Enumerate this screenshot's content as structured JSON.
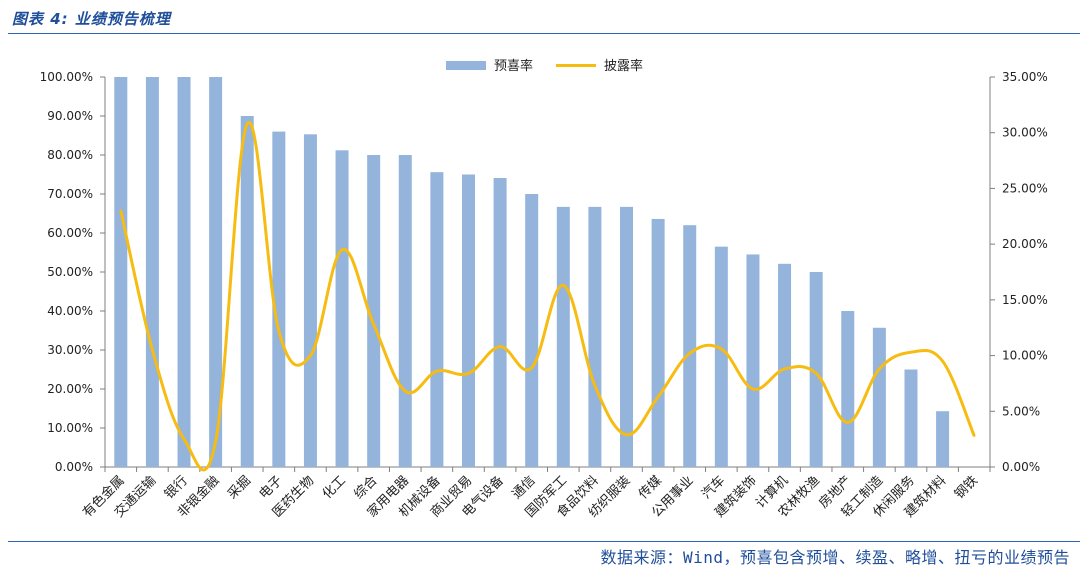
{
  "figure": {
    "title": "图表 4: 业绩预告梳理",
    "source": "数据来源：Wind，预喜包含预增、续盈、略增、扭亏的业绩预告"
  },
  "colors": {
    "bar": "#94b4dc",
    "line": "#f7bc12",
    "axis": "#7f7f7f",
    "rule": "#2b63b5"
  },
  "chart_data": {
    "type": "bar",
    "categories": [
      "有色金属",
      "交通运输",
      "银行",
      "非银金融",
      "采掘",
      "电子",
      "医药生物",
      "化工",
      "综合",
      "家用电器",
      "机械设备",
      "商业贸易",
      "电气设备",
      "通信",
      "国防军工",
      "食品饮料",
      "纺织服装",
      "传媒",
      "公用事业",
      "汽车",
      "建筑装饰",
      "计算机",
      "农林牧渔",
      "房地产",
      "轻工制造",
      "休闲服务",
      "建筑材料",
      "钢铁"
    ],
    "series": [
      {
        "name": "预喜率",
        "type": "bar",
        "axis": "left",
        "values": [
          100.0,
          100.0,
          100.0,
          100.0,
          90.0,
          86.0,
          85.3,
          81.2,
          80.0,
          80.0,
          75.6,
          75.0,
          74.1,
          70.0,
          66.7,
          66.7,
          66.7,
          63.6,
          62.0,
          56.5,
          54.5,
          52.1,
          50.0,
          40.0,
          35.7,
          25.0,
          14.3,
          null
        ]
      },
      {
        "name": "披露率",
        "type": "line",
        "axis": "right",
        "values": [
          23.0,
          10.5,
          2.5,
          2.3,
          30.8,
          12.2,
          10.0,
          19.5,
          12.8,
          6.8,
          8.6,
          8.4,
          10.8,
          8.9,
          16.3,
          7.3,
          2.9,
          6.3,
          10.2,
          10.6,
          7.0,
          8.8,
          8.4,
          4.0,
          8.8,
          10.3,
          9.5,
          2.8
        ]
      }
    ],
    "ylim_left": [
      0,
      100
    ],
    "ylim_right": [
      0,
      35
    ],
    "yticks_left": [
      "0.00%",
      "10.00%",
      "20.00%",
      "30.00%",
      "40.00%",
      "50.00%",
      "60.00%",
      "70.00%",
      "80.00%",
      "90.00%",
      "100.00%"
    ],
    "yticks_right": [
      "0.00%",
      "5.00%",
      "10.00%",
      "15.00%",
      "20.00%",
      "25.00%",
      "30.00%",
      "35.00%"
    ],
    "legend_position": "top-center",
    "grid": false
  }
}
